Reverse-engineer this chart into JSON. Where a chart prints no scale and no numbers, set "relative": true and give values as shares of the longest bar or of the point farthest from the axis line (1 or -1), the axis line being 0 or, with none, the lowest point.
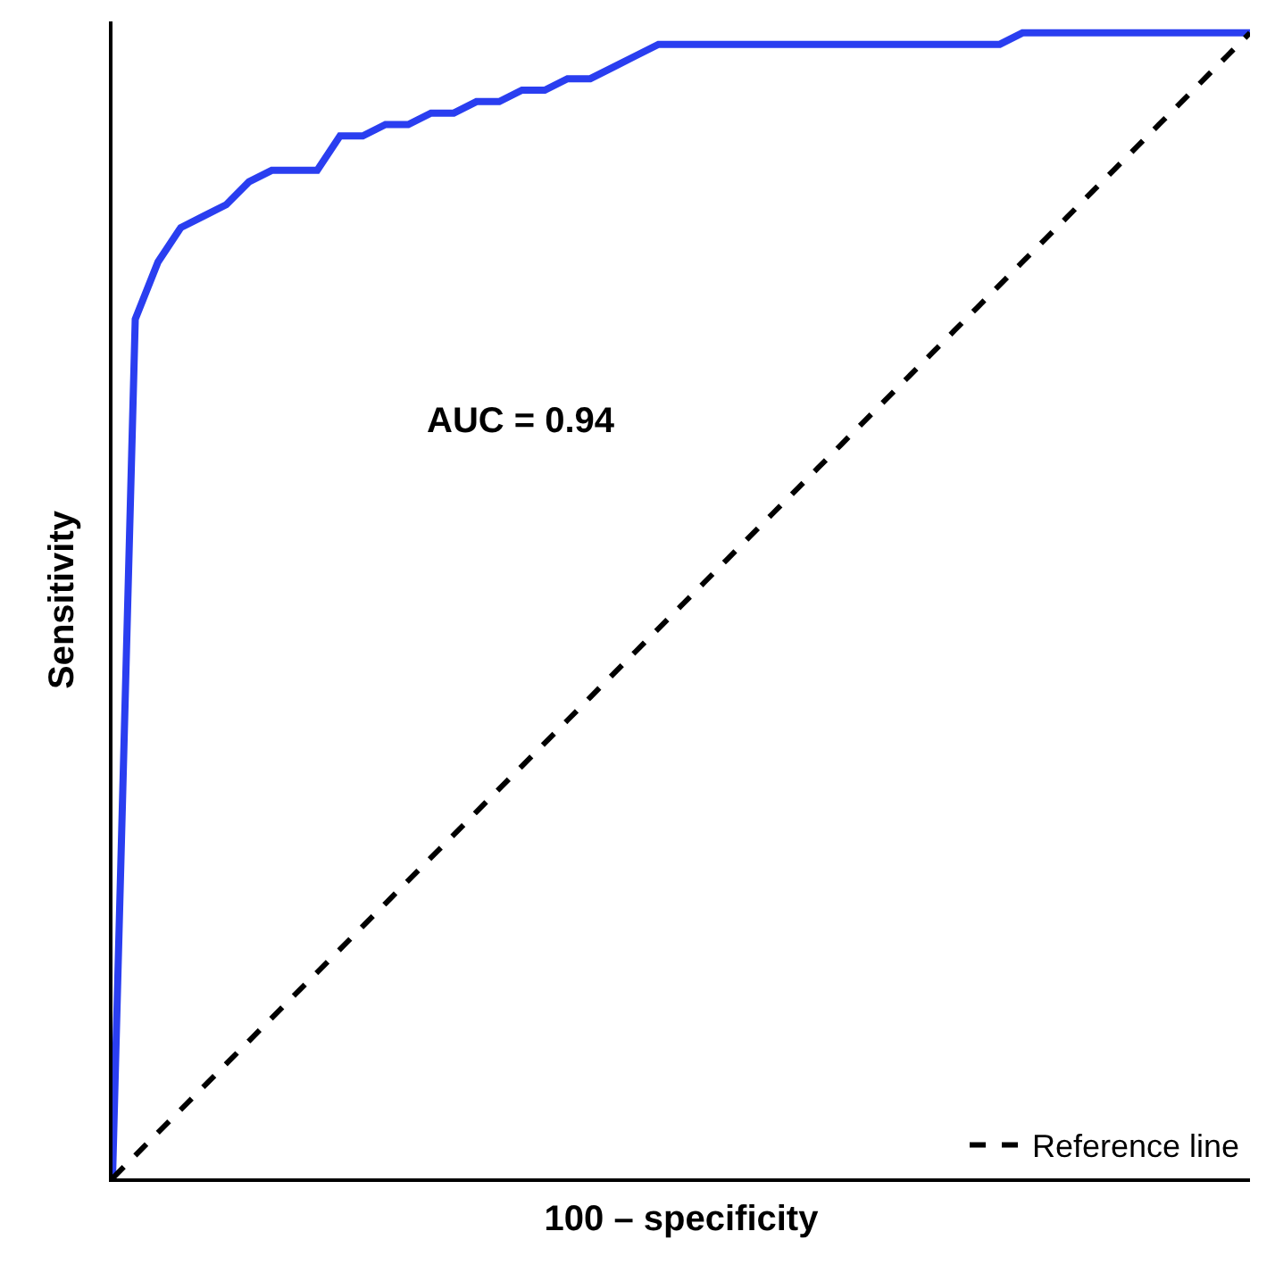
{
  "chart_data": {
    "type": "line",
    "relative": true,
    "xlabel": "100 – specificity",
    "ylabel": "Sensitivity",
    "annotations": [
      "AUC = 0.94"
    ],
    "legend": "bottom right",
    "grid": false,
    "marker": "none",
    "categories": [
      null,
      null,
      null,
      null,
      null,
      null,
      null,
      null,
      null,
      null,
      null,
      null,
      null,
      null,
      null,
      null,
      null,
      null,
      null,
      null,
      null,
      null,
      null,
      null,
      null,
      null,
      null,
      null,
      null,
      null,
      null,
      null,
      null,
      null,
      null,
      null,
      null,
      null,
      null,
      null,
      null,
      null,
      null,
      null,
      null,
      null,
      null,
      null,
      null,
      null,
      null
    ],
    "series": [
      {
        "color": "#2a3ef0",
        "line_style": "solid",
        "values": [
          0,
          0.75,
          0.8,
          0.83,
          0.84,
          0.85,
          0.87,
          0.88,
          0.88,
          0.88,
          0.91,
          0.91,
          0.92,
          0.92,
          0.93,
          0.93,
          0.94,
          0.94,
          0.95,
          0.95,
          0.96,
          0.96,
          0.97,
          0.98,
          0.99,
          0.99,
          0.99,
          0.99,
          0.99,
          0.99,
          0.99,
          0.99,
          0.99,
          0.99,
          0.99,
          0.99,
          0.99,
          0.99,
          0.99,
          0.99,
          1,
          1,
          1,
          1,
          1,
          1,
          1,
          1,
          1,
          1,
          1
        ]
      },
      {
        "name": "Reference line",
        "color": "#000000",
        "line_style": "dashed",
        "values": [
          0,
          0.02,
          0.04,
          0.06,
          0.08,
          0.1,
          0.12,
          0.14,
          0.16,
          0.18,
          0.2,
          0.22,
          0.24,
          0.26,
          0.28,
          0.3,
          0.32,
          0.34,
          0.36,
          0.38,
          0.4,
          0.42,
          0.44,
          0.46,
          0.48,
          0.5,
          0.52,
          0.54,
          0.56,
          0.58,
          0.6,
          0.62,
          0.64,
          0.66,
          0.68,
          0.7,
          0.72,
          0.74,
          0.76,
          0.78,
          0.8,
          0.82,
          0.84,
          0.86,
          0.88,
          0.9,
          0.92,
          0.94,
          0.96,
          0.98,
          1
        ]
      }
    ]
  }
}
